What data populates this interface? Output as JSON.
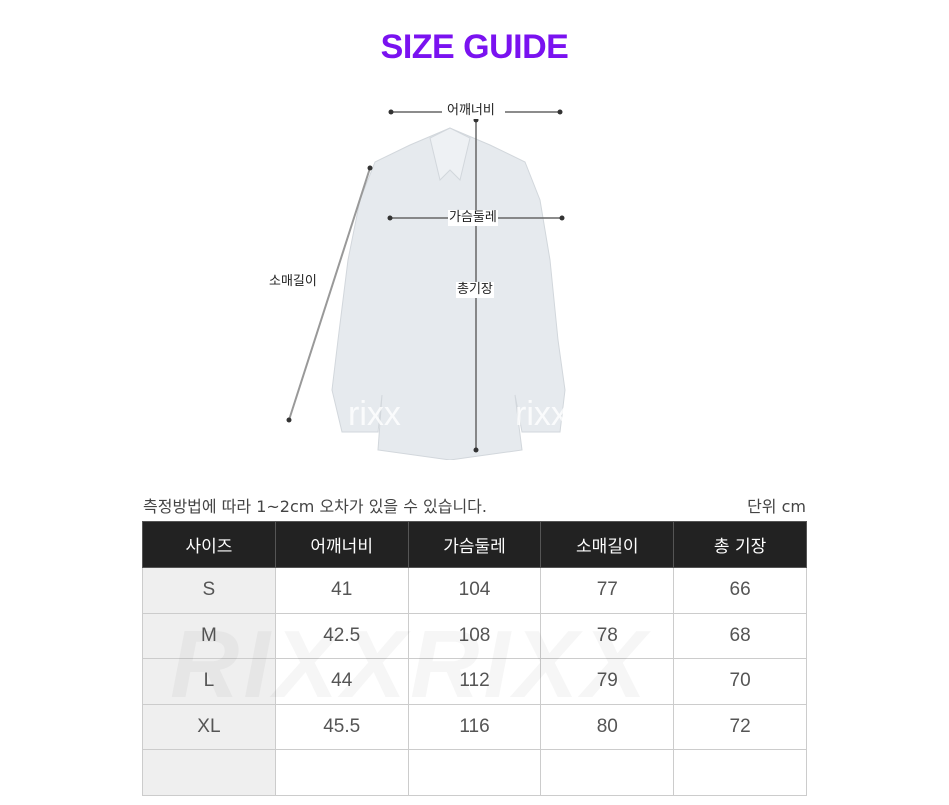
{
  "title": "SIZE GUIDE",
  "diagram": {
    "labels": {
      "shoulder": "어깨너비",
      "chest": "가슴둘레",
      "sleeve": "소매길이",
      "length": "총기장"
    },
    "watermark": "rixx"
  },
  "note": "측정방법에 따라 1~2cm 오차가 있을 수 있습니다.",
  "unit": "단위 cm",
  "table": {
    "headers": [
      "사이즈",
      "어깨너비",
      "가슴둘레",
      "소매길이",
      "총 기장"
    ],
    "rows": [
      [
        "S",
        "41",
        "104",
        "77",
        "66"
      ],
      [
        "M",
        "42.5",
        "108",
        "78",
        "68"
      ],
      [
        "L",
        "44",
        "112",
        "79",
        "70"
      ],
      [
        "XL",
        "45.5",
        "116",
        "80",
        "72"
      ],
      [
        "",
        "",
        "",
        "",
        ""
      ]
    ],
    "watermark": "RIXXRIXX"
  },
  "colors": {
    "accent": "#7a12f0",
    "header_bg": "#222222"
  }
}
